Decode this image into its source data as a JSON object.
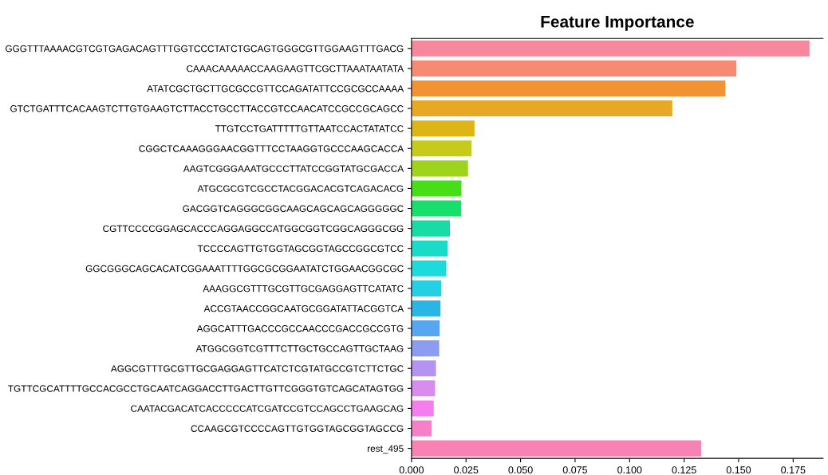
{
  "chart_data": {
    "type": "bar",
    "orientation": "horizontal",
    "title": "Feature Importance",
    "categories": [
      "GGGTTTAAAACGTCGTGAGACAGTTTGGTCCCTATCTGCAGTGGGCGTTGGAAGTTTGACG",
      "CAAACAAAAACCAAGAAGTTCGCTTAAATAATATA",
      "ATATCGCTGCTTGCGCCGTTCCAGATATTCCGCGCCAAAA",
      "GTCTGATTTCACAAGTCTTGTGAAGTCTTACCTGCCTTACCGTCCAACATCCGCCGCAGCC",
      "TTGTCCTGATTTTTGTTAATCCACTATATCC",
      "CGGCTCAAAGGGAACGGTTTCCTAAGGTGCCCAAGCACCA",
      "AAGTCGGGAAATGCCCTTATCCGGTATGCGACCA",
      "ATGCGCGTCGCCTACGGACACGTCAGACACG",
      "GACGGTCAGGGCGGCAAGCAGCAGCAGGGGGC",
      "CGTTCCCCGGAGCACCCAGGAGGCCATGGCGGTCGGCAGGGCGG",
      "TCCCCAGTTGTGGTAGCGGTAGCCGGCGTCC",
      "GGCGGGCAGCACATCGGAAATTTTGGCGCGGAATATCTGGAACGGCGC",
      "AAAGGCGTTTGCGTTGCGAGGAGTTCATATC",
      "ACCGTAACCGGCAATGCGGATATTACGGTCA",
      "AGGCATTTGACCCGCCAACCCGACCGCCGTG",
      "ATGGCGGTCGTTTCTTGCTGCCAGTTGCTAAG",
      "AGGCGTTTGCGTTGCGAGGAGTTCATCTCGTATGCCGTCTTCTGC",
      "TGTTCGCATTTTGCCACGCCTGCAATCAGGACCTTGACTTGTTCGGGTGTCAGCATAGTGG",
      "CAATACGACATCACCCCCATCGATCCGTCCAGCCTGAAGCAG",
      "CCAAGCGTCCCCAGTTGTGGTAGCGGTAGCCG",
      "rest_495"
    ],
    "values": [
      0.1825,
      0.1489,
      0.1439,
      0.1196,
      0.0289,
      0.0275,
      0.0259,
      0.0229,
      0.0228,
      0.0176,
      0.0165,
      0.0159,
      0.0136,
      0.0133,
      0.0129,
      0.0127,
      0.0112,
      0.0108,
      0.0102,
      0.0092,
      0.1328
    ],
    "colors": [
      "#f7879a",
      "#f68a72",
      "#f29233",
      "#e9a823",
      "#ddb517",
      "#c6cb1b",
      "#9ed41c",
      "#47dd17",
      "#18de6b",
      "#18dca4",
      "#1adbc7",
      "#1ddadb",
      "#25d0e4",
      "#2ab6e4",
      "#57a6f1",
      "#8b9cf2",
      "#b494f2",
      "#d98cf0",
      "#f67ded",
      "#f680c7",
      "#f683b4"
    ],
    "xlim": [
      0,
      0.1887
    ],
    "xticks": [
      {
        "value": 0,
        "label": "0.000"
      },
      {
        "value": 0.025,
        "label": "0.025"
      },
      {
        "value": 0.05,
        "label": "0.050"
      },
      {
        "value": 0.075,
        "label": "0.075"
      },
      {
        "value": 0.1,
        "label": "0.100"
      },
      {
        "value": 0.125,
        "label": "0.125"
      },
      {
        "value": 0.15,
        "label": "0.150"
      },
      {
        "value": 0.175,
        "label": "0.175"
      }
    ],
    "grid": false,
    "legend": false
  }
}
